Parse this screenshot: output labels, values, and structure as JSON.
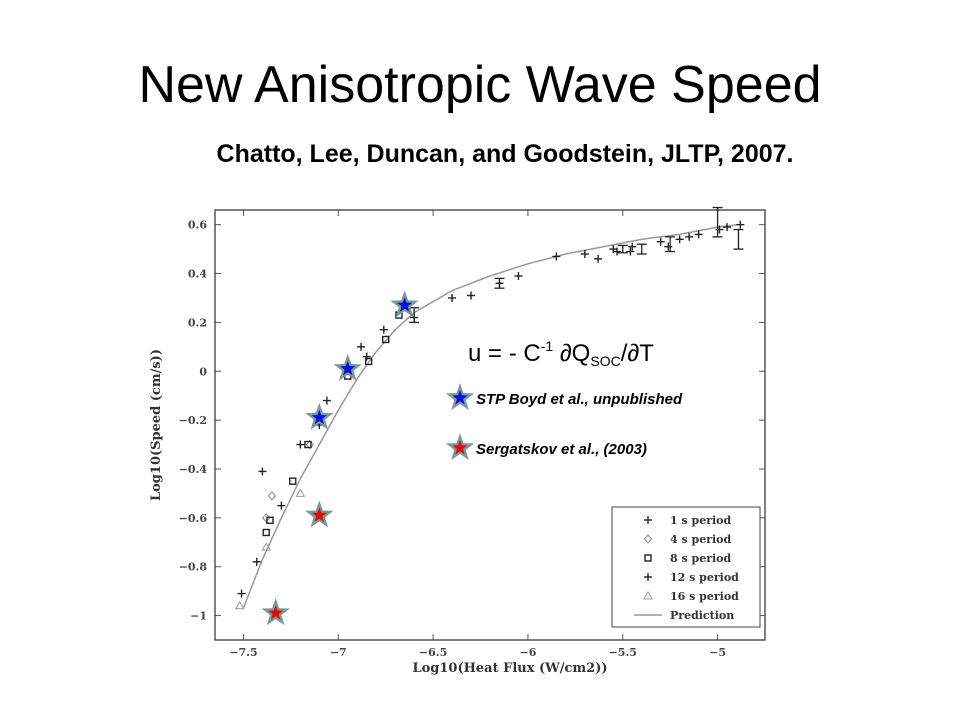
{
  "slide": {
    "title": "New Anisotropic Wave Speed",
    "subtitle": "Chatto, Lee, Duncan, and Goodstein, JLTP, 2007."
  },
  "chart_data": {
    "type": "scatter",
    "xlabel": "Log10(Heat Flux (W/cm2))",
    "ylabel": "Log10(Speed (cm/s))",
    "xlim": [
      -7.65,
      -4.75
    ],
    "ylim": [
      -1.1,
      0.66
    ],
    "x_ticks": [
      -7.5,
      -7,
      -6.5,
      -6,
      -5.5,
      -5
    ],
    "x_tick_labels": [
      "−7.5",
      "−7",
      "−6.5",
      "−6",
      "−5.5",
      "−5"
    ],
    "y_ticks": [
      0.6,
      0.4,
      0.2,
      0,
      -0.2,
      -0.4,
      -0.6,
      -0.8,
      -1
    ],
    "y_tick_labels": [
      "0.6",
      "0.4",
      "0.2",
      "0",
      "−0.2",
      "−0.4",
      "−0.6",
      "−0.8",
      "−1"
    ],
    "legend_position": "bottom-right",
    "series": [
      {
        "name": "1 s period",
        "marker": "plus",
        "x": [
          -7.4,
          -7.3,
          -7.2,
          -7.1,
          -6.85,
          -6.6,
          -6.4,
          -6.3,
          -6.15,
          -6.05,
          -5.85,
          -5.7,
          -5.55,
          -5.45,
          -5.3,
          -5.2,
          -5.15,
          -5.1,
          -4.95,
          -4.88
        ],
        "y": [
          -0.41,
          -0.55,
          -0.3,
          -0.22,
          0.06,
          0.22,
          0.3,
          0.31,
          0.36,
          0.39,
          0.47,
          0.48,
          0.5,
          0.51,
          0.53,
          0.54,
          0.55,
          0.56,
          0.59,
          0.6
        ]
      },
      {
        "name": "4 s period",
        "marker": "diamond",
        "x": [
          -7.38,
          -7.35,
          -7.15
        ],
        "y": [
          -0.6,
          -0.51,
          -0.3
        ]
      },
      {
        "name": "8 s period",
        "marker": "square",
        "x": [
          -7.38,
          -7.36,
          -7.24,
          -7.16,
          -6.95,
          -6.84,
          -6.75,
          -6.68
        ],
        "y": [
          -0.66,
          -0.61,
          -0.45,
          -0.3,
          -0.02,
          0.04,
          0.13,
          0.23
        ]
      },
      {
        "name": "12 s period",
        "marker": "plus",
        "x": [
          -7.51,
          -7.43,
          -7.06,
          -6.88,
          -6.76,
          -6.63,
          -5.63,
          -5.53,
          -5.46,
          -5.26,
          -4.99
        ],
        "y": [
          -0.91,
          -0.78,
          -0.12,
          0.1,
          0.17,
          0.26,
          0.46,
          0.49,
          0.49,
          0.51,
          0.58
        ]
      },
      {
        "name": "16 s period",
        "marker": "triangle",
        "x": [
          -7.52,
          -7.38,
          -7.2
        ],
        "y": [
          -0.96,
          -0.72,
          -0.5
        ]
      },
      {
        "name": "Prediction",
        "marker": "line",
        "x": [
          -7.5,
          -7.4,
          -7.3,
          -7.2,
          -7.1,
          -7.0,
          -6.9,
          -6.8,
          -6.7,
          -6.6,
          -6.4,
          -6.2,
          -6.0,
          -5.8,
          -5.6,
          -5.4,
          -5.2,
          -5.0,
          -4.9
        ],
        "y": [
          -0.97,
          -0.77,
          -0.6,
          -0.44,
          -0.3,
          -0.16,
          -0.03,
          0.08,
          0.17,
          0.24,
          0.33,
          0.39,
          0.44,
          0.48,
          0.51,
          0.54,
          0.56,
          0.59,
          0.6
        ]
      }
    ],
    "error_bars": {
      "x": [
        -6.6,
        -6.15,
        -5.5,
        -5.4,
        -5.25,
        -5.0,
        -4.89
      ],
      "y": [
        0.23,
        0.36,
        0.5,
        0.5,
        0.52,
        0.61,
        0.54
      ],
      "err": [
        0.03,
        0.02,
        0.015,
        0.02,
        0.03,
        0.06,
        0.04
      ]
    },
    "overlay_points": [
      {
        "name": "STP Boyd et al., unpublished",
        "color": "#1010dd",
        "x": [
          -6.65,
          -6.95,
          -7.1
        ],
        "y": [
          0.27,
          0.01,
          -0.19
        ]
      },
      {
        "name": "Sergatskov et al., (2003)",
        "color": "#dd1010",
        "x": [
          -7.1,
          -7.33
        ],
        "y": [
          -0.59,
          -0.99
        ]
      }
    ],
    "annotation": {
      "equation": "u = - C",
      "sup": "-1",
      "mid": " ∂Q",
      "sub": "SOC",
      "end": "/∂T"
    },
    "colors": {
      "frame": "#555555",
      "points": "#222222",
      "prediction": "#999999",
      "star_outline": "#7a9a9a"
    }
  }
}
